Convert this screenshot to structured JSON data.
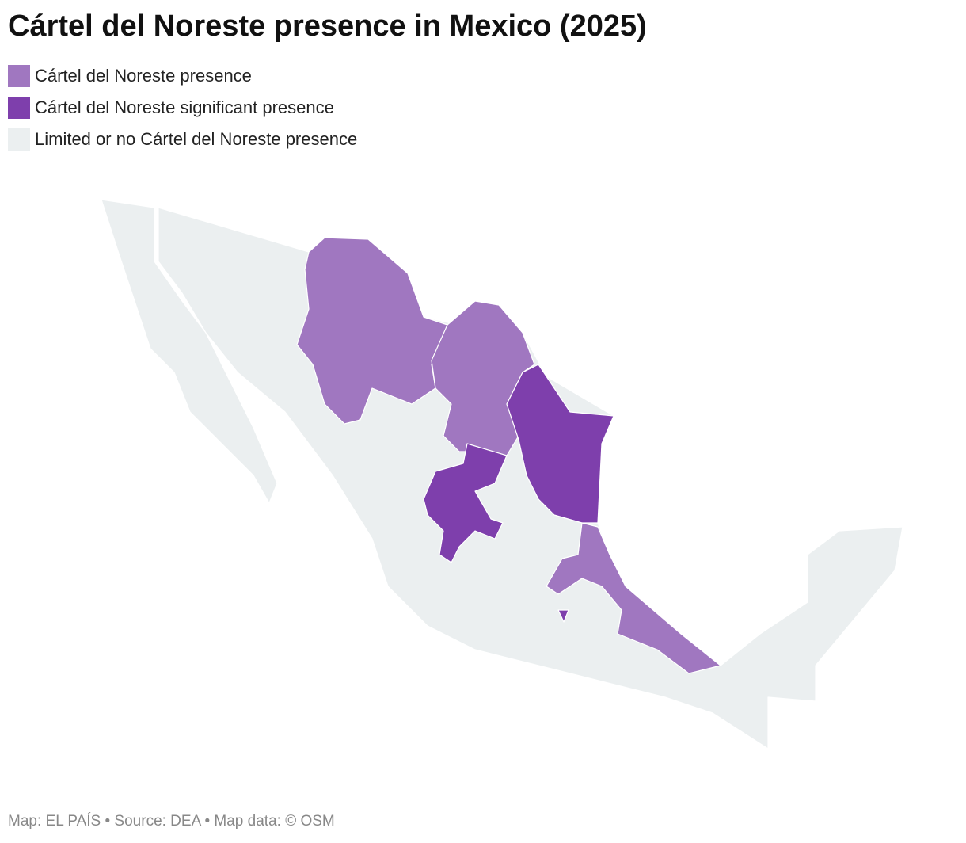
{
  "title": "Cártel del Noreste presence in Mexico (2025)",
  "legend": {
    "items": [
      {
        "label": "Cártel del Noreste presence",
        "color": "#a077c0"
      },
      {
        "label": "Cártel del Noreste significant presence",
        "color": "#7e3fac"
      },
      {
        "label": "Limited or no Cártel del Noreste presence",
        "color": "#ebeff0"
      }
    ]
  },
  "footer": "Map: EL PAÍS • Source: DEA • Map data: © OSM"
}
